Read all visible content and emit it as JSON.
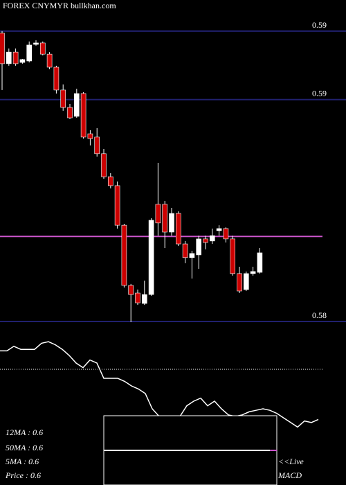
{
  "chart_data": [
    {
      "type": "candlestick",
      "title": "FOREX  CNYMYR bullkhan.com",
      "ylim": [
        0.5803,
        0.596
      ],
      "yticks": [
        {
          "value": 0.5945,
          "label": "0.59"
        },
        {
          "value": 0.5912,
          "label": "0.59"
        },
        {
          "value": 0.5805,
          "label": "0.58"
        }
      ],
      "grid": true,
      "grid_color": "#20206e",
      "price_line": 0.5846,
      "price_line_color": "#cc55cc",
      "up_color": "#ffffff",
      "down_color": "#cc0000",
      "open": [
        0.5944,
        0.59293,
        0.59349,
        0.59299,
        0.59306,
        0.59386,
        0.59393,
        0.59339,
        0.59276,
        0.59166,
        0.59082,
        0.59039,
        0.59149,
        0.58955,
        0.58939,
        0.58859,
        0.58748,
        0.58705,
        0.58514,
        0.58224,
        0.58187,
        0.58137,
        0.5818,
        0.58615,
        0.58615,
        0.58481,
        0.58571,
        0.58424,
        0.58358,
        0.58371,
        0.58448,
        0.58438,
        0.58488,
        0.58498,
        0.58448,
        0.58281,
        0.58204,
        0.58281,
        0.58287
      ],
      "high": [
        0.5945,
        0.59366,
        0.59366,
        0.59316,
        0.594,
        0.59406,
        0.594,
        0.59349,
        0.59283,
        0.59193,
        0.59099,
        0.59172,
        0.59156,
        0.58972,
        0.58982,
        0.58882,
        0.58765,
        0.58725,
        0.58521,
        0.58231,
        0.58204,
        0.58247,
        0.58548,
        0.58815,
        0.58631,
        0.58598,
        0.58581,
        0.58438,
        0.58391,
        0.58464,
        0.58464,
        0.58498,
        0.58514,
        0.58504,
        0.58464,
        0.58314,
        0.58291,
        0.58314,
        0.58404
      ],
      "low": [
        0.59166,
        0.59283,
        0.59283,
        0.59293,
        0.59299,
        0.5938,
        0.59333,
        0.59266,
        0.59149,
        0.59066,
        0.59026,
        0.59032,
        0.58932,
        0.58899,
        0.58845,
        0.58738,
        0.58692,
        0.58498,
        0.58214,
        0.58047,
        0.5813,
        0.5813,
        0.58174,
        0.58464,
        0.58404,
        0.58464,
        0.58414,
        0.58331,
        0.58257,
        0.58304,
        0.58398,
        0.58424,
        0.58464,
        0.58431,
        0.58271,
        0.58187,
        0.58197,
        0.58271,
        0.58281
      ],
      "close": [
        0.59293,
        0.59349,
        0.59293,
        0.59313,
        0.59383,
        0.59393,
        0.59339,
        0.59276,
        0.59166,
        0.59082,
        0.59032,
        0.59149,
        0.58939,
        0.58932,
        0.58859,
        0.58748,
        0.58705,
        0.58514,
        0.58224,
        0.5818,
        0.5814,
        0.5818,
        0.58538,
        0.58525,
        0.58481,
        0.58571,
        0.58424,
        0.58358,
        0.58378,
        0.58448,
        0.58431,
        0.58464,
        0.58498,
        0.58448,
        0.58281,
        0.58197,
        0.58281,
        0.58291,
        0.58381
      ]
    },
    {
      "type": "line",
      "color": "#ffffff",
      "ylim": [
        0,
        1
      ],
      "values": [
        0.88,
        0.88,
        0.91,
        0.89,
        0.89,
        0.89,
        0.93,
        0.94,
        0.92,
        0.89,
        0.85,
        0.8,
        0.77,
        0.82,
        0.8,
        0.7,
        0.7,
        0.7,
        0.68,
        0.65,
        0.63,
        0.6,
        0.5,
        0.45,
        0.44,
        0.44,
        0.45,
        0.52,
        0.55,
        0.57,
        0.52,
        0.55,
        0.5,
        0.46,
        0.45,
        0.46,
        0.48,
        0.49,
        0.5,
        0.49,
        0.47,
        0.44,
        0.41,
        0.38,
        0.42,
        0.41,
        0.43
      ],
      "annotations": [
        "12MA : 0.6",
        "50MA : 0.6",
        "5MA : 0.6",
        "Price   : 0.6",
        "<<Live",
        "MACD"
      ]
    }
  ]
}
